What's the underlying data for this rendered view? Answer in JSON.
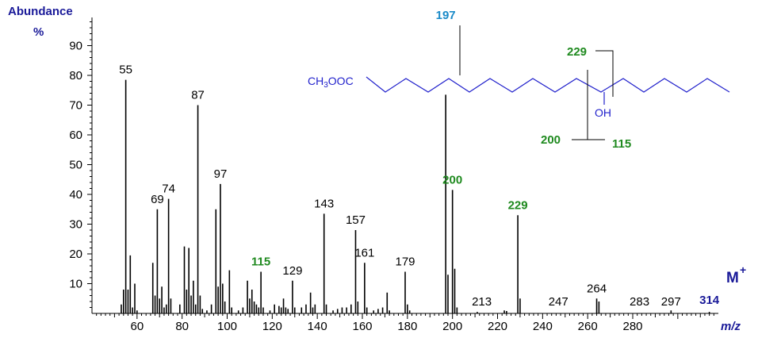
{
  "chart_data": {
    "type": "bar",
    "ylabel": "Abundance",
    "yunit": "%",
    "xlabel": "m/z",
    "xlim": [
      40,
      318
    ],
    "ylim": [
      0,
      100
    ],
    "x_ticks": [
      60,
      80,
      100,
      120,
      140,
      160,
      180,
      200,
      220,
      240,
      260,
      280
    ],
    "y_ticks": [
      10,
      20,
      30,
      40,
      50,
      60,
      70,
      80,
      90
    ],
    "peaks": [
      {
        "x": 53,
        "y": 3
      },
      {
        "x": 54,
        "y": 8
      },
      {
        "x": 55,
        "y": 78.5
      },
      {
        "x": 56,
        "y": 8
      },
      {
        "x": 57,
        "y": 19.5
      },
      {
        "x": 58,
        "y": 2
      },
      {
        "x": 59,
        "y": 10
      },
      {
        "x": 60,
        "y": 1
      },
      {
        "x": 67,
        "y": 17
      },
      {
        "x": 68,
        "y": 6
      },
      {
        "x": 69,
        "y": 35
      },
      {
        "x": 70,
        "y": 5
      },
      {
        "x": 71,
        "y": 9
      },
      {
        "x": 72,
        "y": 2
      },
      {
        "x": 73,
        "y": 3
      },
      {
        "x": 74,
        "y": 38.5
      },
      {
        "x": 75,
        "y": 5
      },
      {
        "x": 79,
        "y": 3
      },
      {
        "x": 81,
        "y": 22.5
      },
      {
        "x": 82,
        "y": 8
      },
      {
        "x": 83,
        "y": 22
      },
      {
        "x": 84,
        "y": 6
      },
      {
        "x": 85,
        "y": 11
      },
      {
        "x": 86,
        "y": 3
      },
      {
        "x": 87,
        "y": 70
      },
      {
        "x": 88,
        "y": 6
      },
      {
        "x": 89,
        "y": 1.5
      },
      {
        "x": 91,
        "y": 1
      },
      {
        "x": 93,
        "y": 3
      },
      {
        "x": 95,
        "y": 35
      },
      {
        "x": 96,
        "y": 9
      },
      {
        "x": 97,
        "y": 43.5
      },
      {
        "x": 98,
        "y": 10
      },
      {
        "x": 99,
        "y": 4
      },
      {
        "x": 101,
        "y": 14.5
      },
      {
        "x": 102,
        "y": 2
      },
      {
        "x": 105,
        "y": 1
      },
      {
        "x": 107,
        "y": 2
      },
      {
        "x": 109,
        "y": 11
      },
      {
        "x": 110,
        "y": 5
      },
      {
        "x": 111,
        "y": 8
      },
      {
        "x": 112,
        "y": 4
      },
      {
        "x": 113,
        "y": 3
      },
      {
        "x": 114,
        "y": 2
      },
      {
        "x": 115,
        "y": 14
      },
      {
        "x": 116,
        "y": 2
      },
      {
        "x": 119,
        "y": 1
      },
      {
        "x": 121,
        "y": 3
      },
      {
        "x": 123,
        "y": 2.5
      },
      {
        "x": 124,
        "y": 2
      },
      {
        "x": 125,
        "y": 5
      },
      {
        "x": 126,
        "y": 2
      },
      {
        "x": 127,
        "y": 1.5
      },
      {
        "x": 129,
        "y": 11
      },
      {
        "x": 130,
        "y": 2
      },
      {
        "x": 133,
        "y": 2
      },
      {
        "x": 135,
        "y": 3
      },
      {
        "x": 137,
        "y": 7
      },
      {
        "x": 138,
        "y": 2
      },
      {
        "x": 139,
        "y": 3
      },
      {
        "x": 143,
        "y": 33.5
      },
      {
        "x": 144,
        "y": 3
      },
      {
        "x": 147,
        "y": 1
      },
      {
        "x": 149,
        "y": 1.5
      },
      {
        "x": 151,
        "y": 2
      },
      {
        "x": 153,
        "y": 2
      },
      {
        "x": 155,
        "y": 3
      },
      {
        "x": 157,
        "y": 28
      },
      {
        "x": 158,
        "y": 4
      },
      {
        "x": 161,
        "y": 17
      },
      {
        "x": 162,
        "y": 2
      },
      {
        "x": 165,
        "y": 1
      },
      {
        "x": 167,
        "y": 1.5
      },
      {
        "x": 169,
        "y": 2
      },
      {
        "x": 171,
        "y": 7
      },
      {
        "x": 172,
        "y": 1
      },
      {
        "x": 179,
        "y": 14
      },
      {
        "x": 180,
        "y": 3
      },
      {
        "x": 181,
        "y": 1
      },
      {
        "x": 197,
        "y": 73.5
      },
      {
        "x": 198,
        "y": 13
      },
      {
        "x": 200,
        "y": 41.5
      },
      {
        "x": 201,
        "y": 15
      },
      {
        "x": 202,
        "y": 2
      },
      {
        "x": 211,
        "y": 0.5
      },
      {
        "x": 223,
        "y": 1
      },
      {
        "x": 224,
        "y": 0.8
      },
      {
        "x": 229,
        "y": 33
      },
      {
        "x": 230,
        "y": 5
      },
      {
        "x": 264,
        "y": 5
      },
      {
        "x": 265,
        "y": 4
      },
      {
        "x": 297,
        "y": 1
      },
      {
        "x": 314,
        "y": 0.5
      }
    ],
    "peak_labels": [
      {
        "text": "55",
        "x": 55,
        "y": 78.5,
        "color": "#000000"
      },
      {
        "text": "69",
        "x": 69,
        "y": 35,
        "color": "#000000"
      },
      {
        "text": "74",
        "x": 74,
        "y": 38.5,
        "color": "#000000"
      },
      {
        "text": "87",
        "x": 87,
        "y": 70,
        "color": "#000000"
      },
      {
        "text": "97",
        "x": 97,
        "y": 43.5,
        "color": "#000000"
      },
      {
        "text": "115",
        "x": 115,
        "y": 14,
        "color": "#1f8a1f"
      },
      {
        "text": "129",
        "x": 129,
        "y": 11,
        "color": "#000000"
      },
      {
        "text": "143",
        "x": 143,
        "y": 33.5,
        "color": "#000000"
      },
      {
        "text": "157",
        "x": 157,
        "y": 28,
        "color": "#000000"
      },
      {
        "text": "161",
        "x": 161,
        "y": 17,
        "color": "#000000"
      },
      {
        "text": "179",
        "x": 179,
        "y": 14,
        "color": "#000000"
      },
      {
        "text": "200",
        "x": 200,
        "y": 41.5,
        "color": "#1f8a1f"
      },
      {
        "text": "213",
        "x": 213,
        "y": 1,
        "color": "#000000"
      },
      {
        "text": "229",
        "x": 229,
        "y": 33,
        "color": "#1f8a1f"
      },
      {
        "text": "247",
        "x": 247,
        "y": 1,
        "color": "#000000"
      },
      {
        "text": "264",
        "x": 264,
        "y": 5,
        "color": "#000000"
      },
      {
        "text": "283",
        "x": 283,
        "y": 1,
        "color": "#000000"
      },
      {
        "text": "297",
        "x": 297,
        "y": 1.5,
        "color": "#000000"
      },
      {
        "text": "314",
        "x": 314,
        "y": 1,
        "color": "#1a1a99"
      }
    ],
    "base_peak_label": {
      "text": "197",
      "x": 197,
      "color": "#1a8ac8"
    },
    "molecular_ion_label": "M+"
  },
  "structure": {
    "ester_group": "CH3OOC",
    "hydroxyl": "OH",
    "fragments": {
      "upper_right": "229",
      "lower_left": "200",
      "lower_right": "115"
    }
  },
  "colors": {
    "bars": "#000000",
    "structure": "#2222cc",
    "fragment_green": "#1f8a1f",
    "base_peak_blue": "#1a8ac8",
    "axis_title_navy": "#1a1a99"
  }
}
